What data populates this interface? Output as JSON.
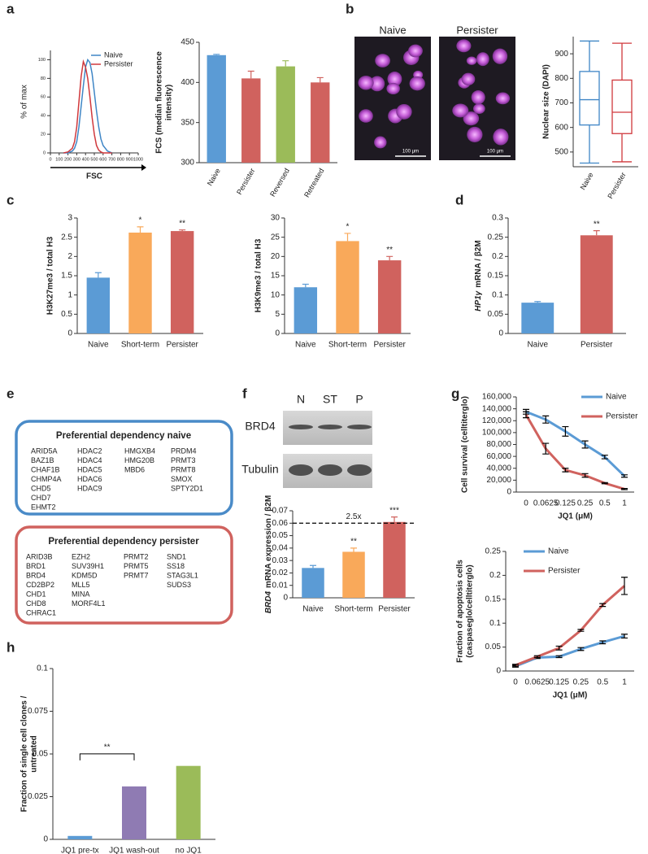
{
  "panels": [
    "a",
    "b",
    "c",
    "d",
    "e",
    "f",
    "g",
    "h"
  ],
  "chart_data": [
    {
      "type": "line",
      "ylabel": "% of max",
      "xlabel": "FSC",
      "x": [
        150,
        200,
        250,
        275,
        300,
        325,
        350,
        375,
        400,
        425,
        450,
        475,
        500,
        525,
        550,
        575,
        600,
        650,
        700
      ],
      "xlim": [
        0,
        1000
      ],
      "xticks": [
        0,
        100,
        200,
        300,
        400,
        500,
        600,
        700,
        800,
        900,
        1000
      ],
      "ylim": [
        0,
        110
      ],
      "yticks": [
        0,
        20,
        40,
        60,
        80,
        100
      ],
      "legend": "upper right",
      "series": [
        {
          "name": "Naive",
          "color": "#3f86c6",
          "values": [
            0,
            0,
            2,
            5,
            12,
            28,
            50,
            72,
            92,
            100,
            97,
            85,
            65,
            45,
            28,
            15,
            8,
            2,
            0
          ]
        },
        {
          "name": "Persister",
          "color": "#d0383c",
          "values": [
            0,
            1,
            5,
            12,
            28,
            55,
            82,
            98,
            92,
            80,
            60,
            38,
            20,
            8,
            3,
            1,
            0,
            0,
            0
          ]
        }
      ]
    },
    {
      "type": "bar",
      "ylabel": [
        "FCS (median fluorescence",
        "intensity)"
      ],
      "categories": [
        "Naive",
        "Persister",
        "Reversed",
        "Retreated"
      ],
      "values": [
        434,
        405,
        420,
        400
      ],
      "errors": [
        1,
        9,
        7,
        6
      ],
      "colors": [
        "#5b9bd5",
        "#d0625e",
        "#9bbb59",
        "#d0625e"
      ],
      "ylim": [
        300,
        450
      ],
      "yticks": [
        300,
        350,
        400,
        450
      ]
    },
    {
      "type": "box",
      "ylabel": "Nuclear size (DAPI)",
      "categories": [
        "Naive",
        "Persister"
      ],
      "boxes": [
        {
          "color": "#3f86c6",
          "min": 455,
          "q1": 610,
          "median": 713,
          "q3": 828,
          "max": 952
        },
        {
          "color": "#d0383c",
          "min": 460,
          "q1": 575,
          "median": 662,
          "q3": 793,
          "max": 943
        }
      ],
      "ylim": [
        440,
        970
      ],
      "yticks": [
        500,
        600,
        700,
        800,
        900
      ]
    },
    {
      "type": "bar",
      "ylabel": "H3K27me3 / total H3",
      "categories": [
        "Naive",
        "Short-term",
        "Persister"
      ],
      "values": [
        1.45,
        2.62,
        2.66
      ],
      "errors": [
        0.13,
        0.15,
        0.03
      ],
      "annotations": [
        null,
        "*",
        "**"
      ],
      "colors": [
        "#5b9bd5",
        "#f9a95a",
        "#d0625e"
      ],
      "ylim": [
        0,
        3
      ],
      "yticks": [
        0,
        0.5,
        1,
        1.5,
        2,
        2.5,
        3
      ]
    },
    {
      "type": "bar",
      "ylabel": "H3K9me3 / total H3",
      "categories": [
        "Naive",
        "Short-term",
        "Persister"
      ],
      "values": [
        12,
        24,
        19
      ],
      "errors": [
        0.8,
        2,
        1
      ],
      "annotations": [
        null,
        "*",
        "**"
      ],
      "colors": [
        "#5b9bd5",
        "#f9a95a",
        "#d0625e"
      ],
      "ylim": [
        0,
        30
      ],
      "yticks": [
        0,
        5,
        10,
        15,
        20,
        25,
        30
      ]
    },
    {
      "type": "bar",
      "ylabel_italic": "HP1γ",
      "ylabel": "mRNA / β2M",
      "categories": [
        "Naive",
        "Persister"
      ],
      "values": [
        0.08,
        0.255
      ],
      "errors": [
        0.003,
        0.012
      ],
      "annotations": [
        null,
        "**"
      ],
      "colors": [
        "#5b9bd5",
        "#d0625e"
      ],
      "ylim": [
        0,
        0.3
      ],
      "yticks": [
        0,
        0.05,
        0.1,
        0.15,
        0.2,
        0.25,
        0.3
      ]
    },
    {
      "type": "bar",
      "ylabel_italic": "BRD4",
      "ylabel": "mRNA expression / β2M",
      "categories": [
        "Naive",
        "Short-term",
        "Persister"
      ],
      "values": [
        0.024,
        0.037,
        0.061
      ],
      "errors": [
        0.002,
        0.003,
        0.004
      ],
      "annotations": [
        null,
        "**",
        "***"
      ],
      "colors": [
        "#5b9bd5",
        "#f9a95a",
        "#d0625e"
      ],
      "ylim": [
        0,
        0.07
      ],
      "yticks": [
        0,
        0.01,
        0.02,
        0.03,
        0.04,
        0.05,
        0.06,
        0.07
      ],
      "reference": {
        "value": 0.06,
        "label": "2.5x"
      }
    },
    {
      "type": "line",
      "ylabel": "Cell survival (celltiterglo)",
      "xlabel": "JQ1 (μM)",
      "categories": [
        "0",
        "0.0625",
        "0.125",
        "0.25",
        "0.5",
        "1"
      ],
      "legend": "upper right",
      "ylim": [
        0,
        160000
      ],
      "yticks": [
        0,
        {
          "value": 20000,
          "label": "20,000"
        },
        {
          "value": 40000,
          "label": "40,000"
        },
        {
          "value": 60000,
          "label": "60,000"
        },
        {
          "value": 80000,
          "label": "80,000"
        },
        {
          "value": 100000,
          "label": "100,000"
        },
        {
          "value": 120000,
          "label": "120,000"
        },
        {
          "value": 140000,
          "label": "140,000"
        },
        {
          "value": 160000,
          "label": "160,000"
        }
      ],
      "series": [
        {
          "name": "Naive",
          "color": "#5b9bd5",
          "values": [
            135000,
            122000,
            102000,
            80000,
            59000,
            27000
          ],
          "errors": [
            4000,
            6000,
            8000,
            6000,
            3000,
            2000
          ]
        },
        {
          "name": "Persister",
          "color": "#d0625e",
          "values": [
            130000,
            73000,
            37000,
            28000,
            15000,
            5000
          ],
          "errors": [
            5000,
            9000,
            3000,
            3000,
            1000,
            1000
          ]
        }
      ]
    },
    {
      "type": "line",
      "ylabel": [
        "Fraction of apoptosis cells",
        "(caspaseglo/celltiterglo)"
      ],
      "xlabel": "JQ1 (μM)",
      "categories": [
        "0",
        "0.0625",
        "0.125",
        "0.25",
        "0.5",
        "1"
      ],
      "legend": "upper left",
      "ylim": [
        0,
        0.25
      ],
      "yticks": [
        0,
        0.05,
        0.1,
        0.15,
        0.2,
        0.25
      ],
      "series": [
        {
          "name": "Naive",
          "color": "#5b9bd5",
          "values": [
            0.01,
            0.028,
            0.03,
            0.046,
            0.06,
            0.073
          ],
          "errors": [
            0.002,
            0.002,
            0.002,
            0.003,
            0.003,
            0.004
          ]
        },
        {
          "name": "Persister",
          "color": "#d0625e",
          "values": [
            0.012,
            0.03,
            0.048,
            0.085,
            0.138,
            0.178
          ],
          "errors": [
            0.002,
            0.002,
            0.004,
            0.002,
            0.003,
            0.018
          ]
        }
      ]
    },
    {
      "type": "bar",
      "ylabel": [
        "Fraction of single cell clones /",
        "untreated"
      ],
      "categories": [
        "JQ1 pre-tx",
        "JQ1 wash-out",
        "no JQ1"
      ],
      "values": [
        0.002,
        0.031,
        0.043
      ],
      "colors": [
        "#5b9bd5",
        "#8f7bb3",
        "#9bbb59"
      ],
      "ylim": [
        0,
        0.1
      ],
      "yticks": [
        0,
        0.025,
        0.05,
        0.075,
        0.1
      ],
      "bracket_label": "**"
    }
  ],
  "images": {
    "titles": [
      "Naive",
      "Persister"
    ],
    "scale_bars": [
      "100 μm",
      "100 μm"
    ]
  },
  "gene_lists": [
    {
      "title": "Preferential dependency naive",
      "columns": [
        [
          "ARID5A",
          "BAZ1B",
          "CHAF1B",
          "CHMP4A",
          "CHD5",
          "CHD7",
          "EHMT2"
        ],
        [
          "HDAC2",
          "HDAC4",
          "HDAC5",
          "HDAC6",
          "HDAC9"
        ],
        [
          "HMGXB4",
          "HMG20B",
          "MBD6"
        ],
        [
          "PRDM4",
          "PRMT3",
          "PRMT8",
          "SMOX",
          "SPTY2D1"
        ]
      ]
    },
    {
      "title": "Preferential dependency persister",
      "columns": [
        [
          "ARID3B",
          "BRD1",
          "BRD4",
          "CD2BP2",
          "CHD1",
          "CHD8",
          "CHRAC1"
        ],
        [
          "EZH2",
          "SUV39H1",
          "KDM5D",
          "MLL5",
          "MINA",
          "MORF4L1"
        ],
        [
          "PRMT2",
          "PRMT5",
          "PRMT7"
        ],
        [
          "SND1",
          "SS18",
          "STAG3L1",
          "SUDS3"
        ]
      ]
    }
  ],
  "blot": {
    "lanes": [
      "N",
      "ST",
      "P"
    ],
    "rows": [
      "BRD4",
      "Tubulin"
    ]
  }
}
